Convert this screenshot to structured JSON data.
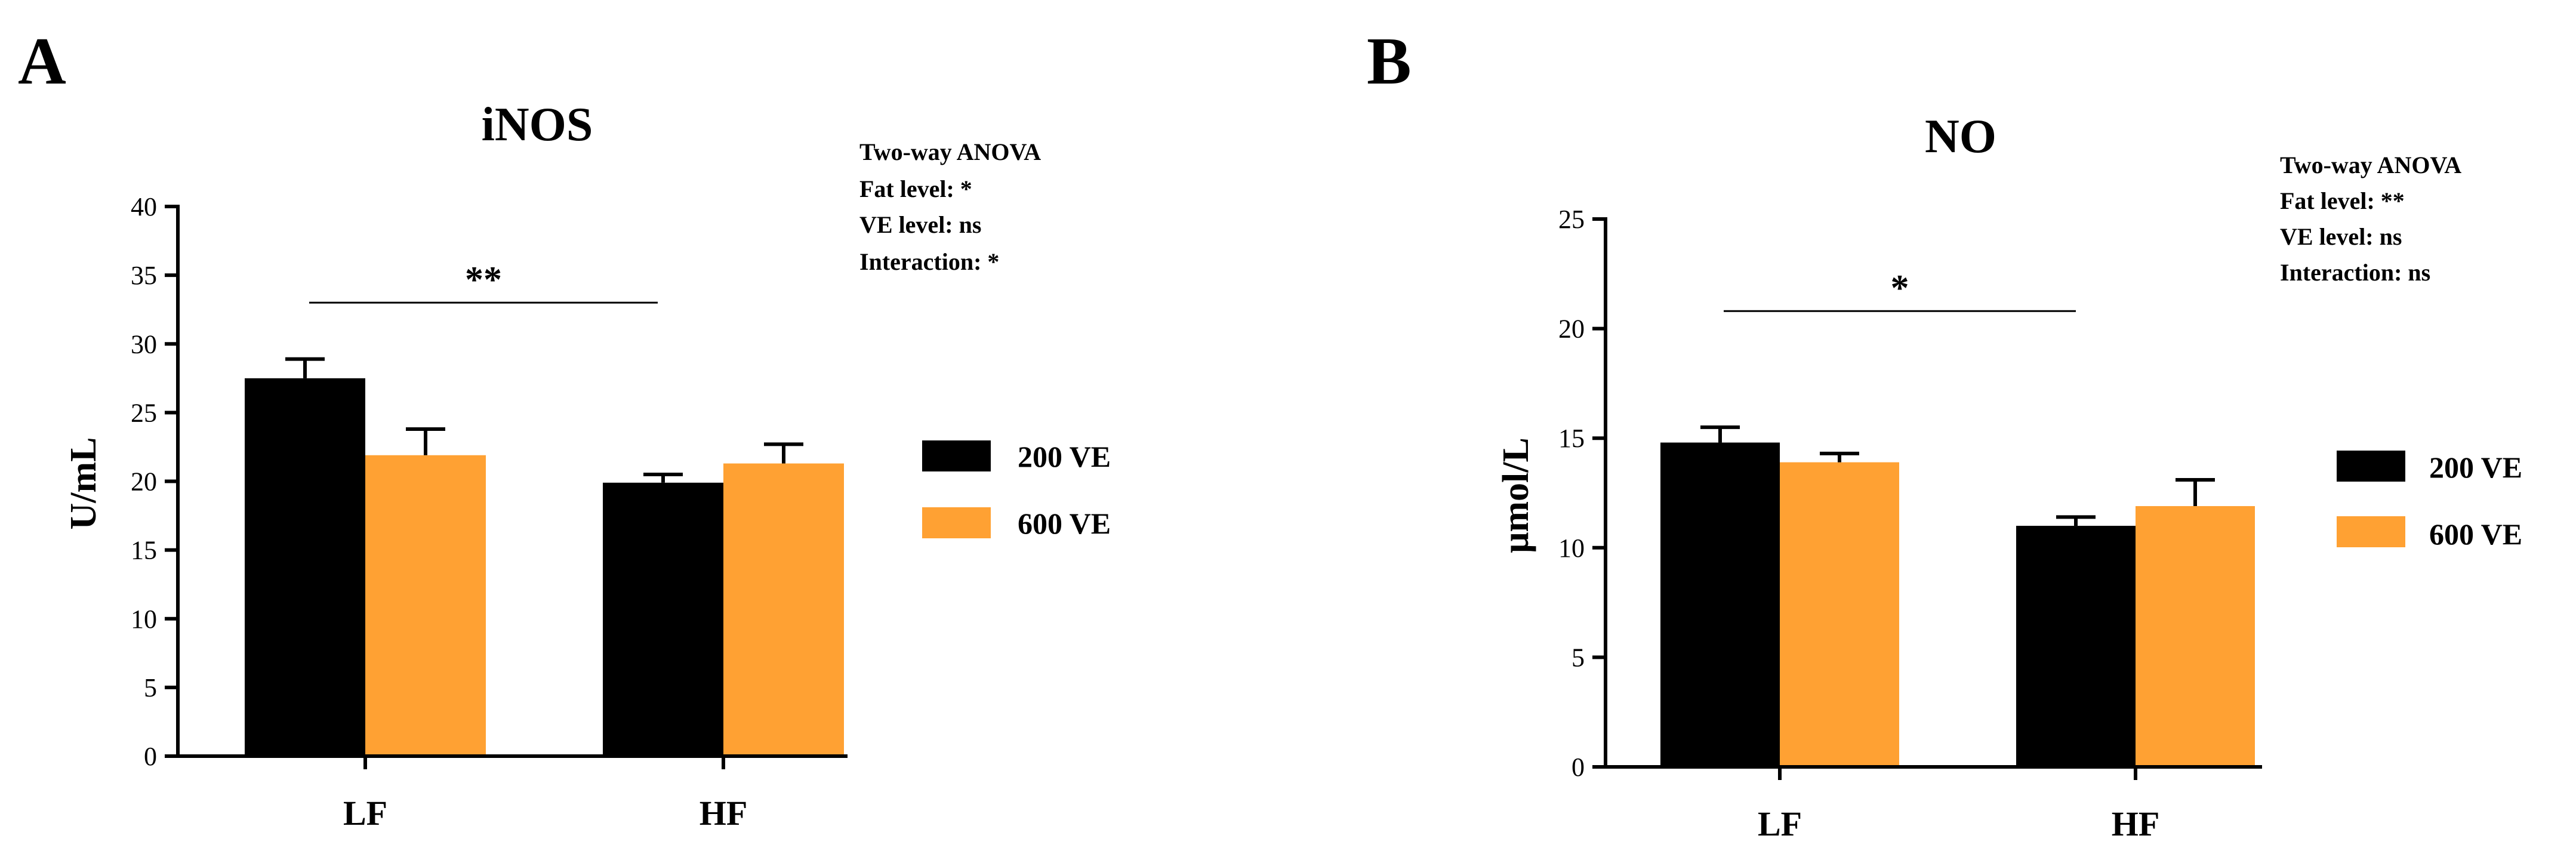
{
  "figure": {
    "panels": [
      "A",
      "B"
    ]
  },
  "chart_data": [
    {
      "type": "bar",
      "panel": "A",
      "title": "iNOS",
      "xlabel": "",
      "ylabel": "U/mL",
      "ylim": [
        0,
        40
      ],
      "yticks": [
        0,
        5,
        10,
        15,
        20,
        25,
        30,
        35,
        40
      ],
      "categories": [
        "LF",
        "HF"
      ],
      "series": [
        {
          "name": "200 VE",
          "color": "#000000",
          "values": [
            27.5,
            19.9
          ],
          "errors": [
            1.4,
            0.6
          ]
        },
        {
          "name": "600 VE",
          "color": "#FFA133",
          "values": [
            21.9,
            21.3
          ],
          "errors": [
            1.9,
            1.4
          ]
        }
      ],
      "legend_position": "right",
      "annotation": [
        "Two-way ANOVA",
        "Fat level: *",
        "VE level: ns",
        "Interaction: *"
      ],
      "significance": {
        "label": "**",
        "between": [
          "LF",
          "HF"
        ],
        "level": 33
      }
    },
    {
      "type": "bar",
      "panel": "B",
      "title": "NO",
      "xlabel": "",
      "ylabel": "μmol/L",
      "ylim": [
        0,
        25
      ],
      "yticks": [
        0,
        5,
        10,
        15,
        20,
        25
      ],
      "categories": [
        "LF",
        "HF"
      ],
      "series": [
        {
          "name": "200 VE",
          "color": "#000000",
          "values": [
            14.8,
            11.0
          ],
          "errors": [
            0.7,
            0.4
          ]
        },
        {
          "name": "600 VE",
          "color": "#FFA133",
          "values": [
            13.9,
            11.9
          ],
          "errors": [
            0.4,
            1.2
          ]
        }
      ],
      "legend_position": "right",
      "annotation": [
        "Two-way ANOVA",
        "Fat level: **",
        "VE level: ns",
        "Interaction: ns"
      ],
      "significance": {
        "label": "*",
        "between": [
          "LF",
          "HF"
        ],
        "level": 20.8
      }
    }
  ]
}
